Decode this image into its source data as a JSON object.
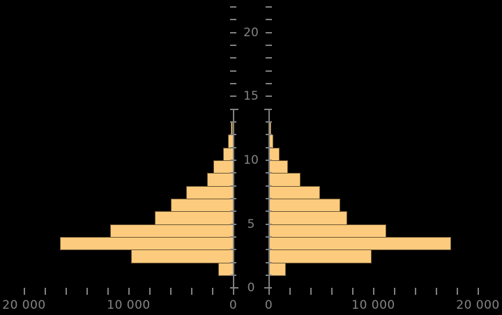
{
  "colors": {
    "background": "#000000",
    "bar_fill": "#fccb7d",
    "bar_edge": "#6f5833",
    "axis": "#808080",
    "text": "#848484"
  },
  "chart_data": {
    "type": "bar",
    "subtype": "population-pyramid",
    "title": "",
    "orientation": "two mirrored horizontal-bar panels sharing a central vertical value axis",
    "grid": false,
    "legend": false,
    "categories": [
      "1-2",
      "2-3",
      "3-4",
      "4-5",
      "5-6",
      "6-7",
      "7-8",
      "8-9",
      "9-10",
      "10-11",
      "11-12",
      "12-13"
    ],
    "band_note": "each bar spans one unit band from k to k+1 on the central axis, k = 1..12",
    "series": [
      {
        "name": "left",
        "values": [
          1450,
          9800,
          16550,
          11750,
          7500,
          6000,
          4500,
          2500,
          1900,
          950,
          500,
          220
        ]
      },
      {
        "name": "right",
        "values": [
          1650,
          9850,
          17400,
          11200,
          7500,
          6850,
          4900,
          3050,
          1850,
          1050,
          450,
          250
        ]
      }
    ],
    "y_axis": {
      "position": "center",
      "min": 0,
      "max": 22,
      "tick_step": 1,
      "labeled_values": [
        0,
        5,
        10,
        15,
        20
      ],
      "tick_labels": [
        "0",
        "5",
        "10",
        "15",
        "20"
      ],
      "spine_span": [
        0,
        14
      ],
      "spine_caps": "short horizontal caps at 0 and 14 pointing toward chart center"
    },
    "x_axis_left": {
      "direction": "right-to-left",
      "min": 0,
      "max": 20000,
      "tick_step": 2000,
      "labeled_values": [
        20000,
        10000,
        0
      ],
      "tick_labels": [
        "20 000",
        "10 000",
        "0"
      ]
    },
    "x_axis_right": {
      "direction": "left-to-right",
      "min": 0,
      "max": 20000,
      "tick_step": 2000,
      "labeled_values": [
        0,
        10000,
        20000
      ],
      "tick_labels": [
        "0",
        "10 000",
        "20 000"
      ]
    }
  }
}
